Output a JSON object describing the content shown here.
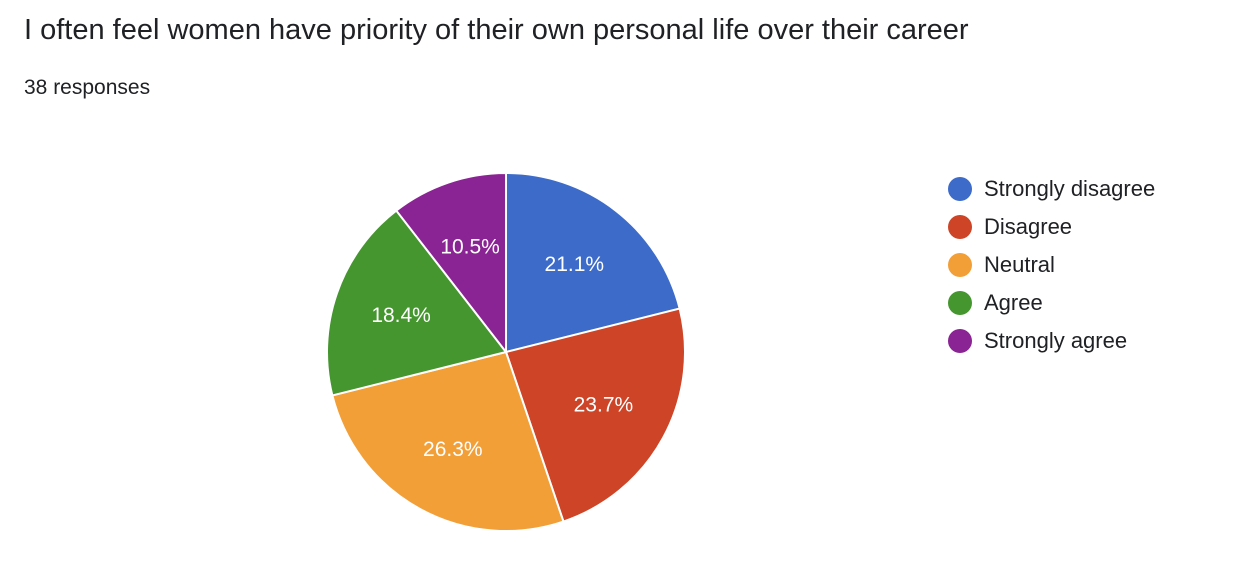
{
  "title": "I often feel women have priority of their own personal life over their career",
  "subtitle": "38 responses",
  "chart_data": {
    "type": "pie",
    "title": "I often feel women have priority of their own personal life over their career",
    "total_responses": 38,
    "start_angle_deg": 90,
    "direction": "clockwise",
    "legend_position": "right",
    "categories": [
      "Strongly disagree",
      "Disagree",
      "Neutral",
      "Agree",
      "Strongly agree"
    ],
    "values": [
      21.1,
      23.7,
      26.3,
      18.4,
      10.5
    ],
    "labels": [
      "21.1%",
      "23.7%",
      "26.3%",
      "18.4%",
      "10.5%"
    ],
    "colors": [
      "#3c6bc9",
      "#cd4427",
      "#f29f38",
      "#45962f",
      "#8a2393"
    ]
  }
}
